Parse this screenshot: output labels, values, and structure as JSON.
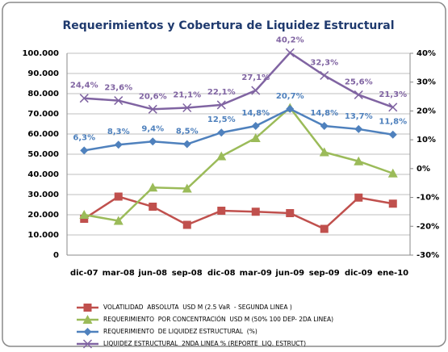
{
  "chart_data": {
    "type": "line",
    "title": "Requerimientos y Cobertura de Liquidez Estructural",
    "categories": [
      "dic-07",
      "mar-08",
      "jun-08",
      "sep-08",
      "dic-08",
      "mar-09",
      "jun-09",
      "sep-09",
      "dic-09",
      "ene-10"
    ],
    "ylim": [
      0,
      100000
    ],
    "yticks": [
      0,
      {
        "value": 10000,
        "label": "10.000"
      },
      {
        "value": 20000,
        "label": "20.000"
      },
      {
        "value": 30000,
        "label": "30.000"
      },
      {
        "value": 40000,
        "label": "40.000"
      },
      {
        "value": 50000,
        "label": "50.000"
      },
      {
        "value": 60000,
        "label": "60.000"
      },
      {
        "value": 70000,
        "label": "70.000"
      },
      {
        "value": 80000,
        "label": "80.000"
      },
      {
        "value": 90000,
        "label": "90.000"
      },
      {
        "value": 100000,
        "label": "100.000"
      }
    ],
    "y2lim": [
      -30,
      40
    ],
    "y2ticks": [
      {
        "value": -30,
        "label": "-30%"
      },
      {
        "value": -20,
        "label": "-20%"
      },
      {
        "value": -10,
        "label": "-10%"
      },
      {
        "value": 0,
        "label": "0%"
      },
      {
        "value": 10,
        "label": "10%"
      },
      {
        "value": 20,
        "label": "20%"
      },
      {
        "value": 30,
        "label": "30%"
      },
      {
        "value": 40,
        "label": "40%"
      }
    ],
    "grid": true,
    "legend": "bottom",
    "series": [
      {
        "name": "VOLATILIDAD  ABSOLUTA  USD M (2.5 VaR  - SEGUNDA LINEA )",
        "color": "#c0504d",
        "marker": "square",
        "values": [
          18000,
          29000,
          24000,
          15000,
          22000,
          21500,
          20800,
          13000,
          28500,
          25500
        ]
      },
      {
        "name": "REQUERIMIENTO  POR CONCENTRACIÓN  USD M (50% 100 DEP- 2DA LINEA)",
        "color": "#9bbb59",
        "marker": "triangle",
        "values": [
          20000,
          17000,
          33500,
          33000,
          49000,
          58000,
          73000,
          51000,
          46500,
          40500
        ]
      },
      {
        "name": "REQUERIMIENTO  DE LIQUIDEZ ESTRUCTURAL  (%)",
        "color": "#4f81bd",
        "marker": "diamond",
        "axis": "y2",
        "values": [
          6.3,
          8.3,
          9.4,
          8.5,
          12.5,
          14.8,
          20.7,
          14.8,
          13.7,
          11.8
        ],
        "value_labels": [
          "6,3%",
          "8,3%",
          "9,4%",
          "8,5%",
          "12,5%",
          "14,8%",
          "20,7%",
          "14,8%",
          "13,7%",
          "11,8%"
        ]
      },
      {
        "name": "LIQUIDEZ ESTRUCTURAL  2NDA LINEA % (REPORTE  LIQ. ESTRUCT)",
        "color": "#8064a2",
        "marker": "x",
        "axis": "y2",
        "values": [
          24.4,
          23.6,
          20.6,
          21.1,
          22.1,
          27.1,
          40.2,
          32.3,
          25.6,
          21.3
        ],
        "value_labels": [
          "24,4%",
          "23,6%",
          "20,6%",
          "21,1%",
          "22,1%",
          "27,1%",
          "40,2%",
          "32,3%",
          "25,6%",
          "21,3%"
        ]
      }
    ]
  }
}
